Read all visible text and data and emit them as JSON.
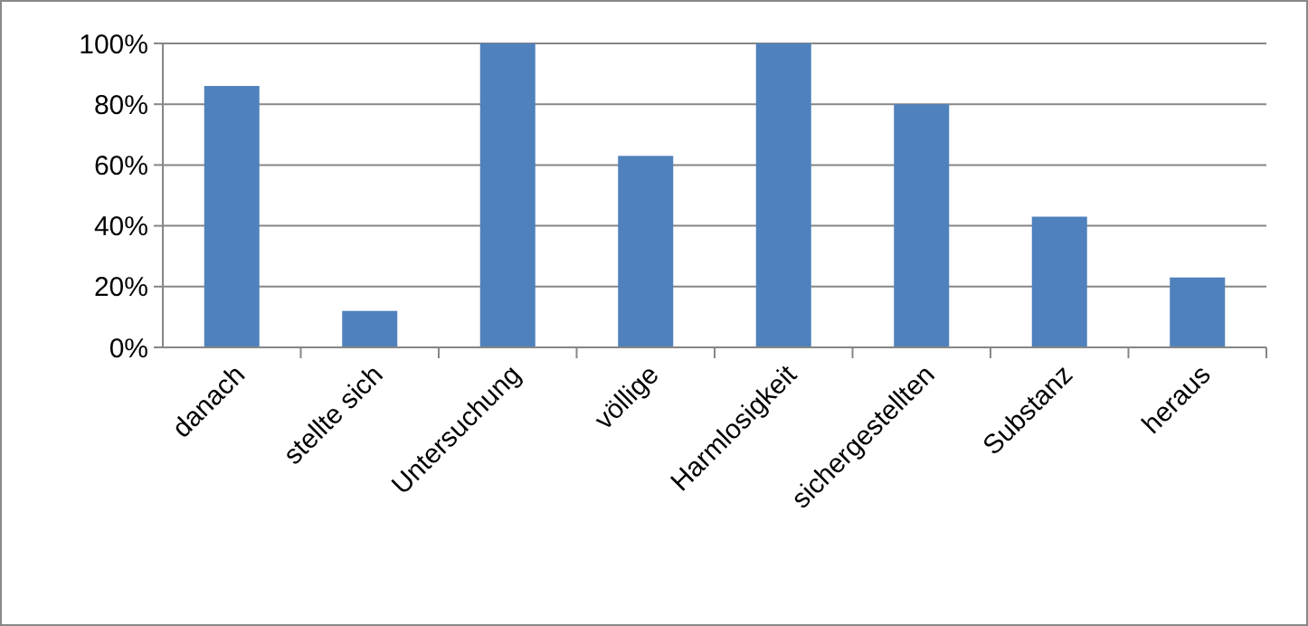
{
  "chart_data": {
    "type": "bar",
    "categories": [
      "danach",
      "stellte sich",
      "Untersuchung",
      "völlige",
      "Harmlosigkeit",
      "sichergestellten",
      "Substanz",
      "heraus"
    ],
    "values": [
      86,
      12,
      100,
      63,
      100,
      80,
      43,
      23
    ],
    "color": "#4f81bd",
    "ylim": [
      0,
      100
    ],
    "yticks": [
      {
        "value": 0,
        "label": "0%"
      },
      {
        "value": 20,
        "label": "20%"
      },
      {
        "value": 40,
        "label": "40%"
      },
      {
        "value": 60,
        "label": "60%"
      },
      {
        "value": 80,
        "label": "80%"
      },
      {
        "value": 100,
        "label": "100%"
      }
    ],
    "grid": "y"
  }
}
